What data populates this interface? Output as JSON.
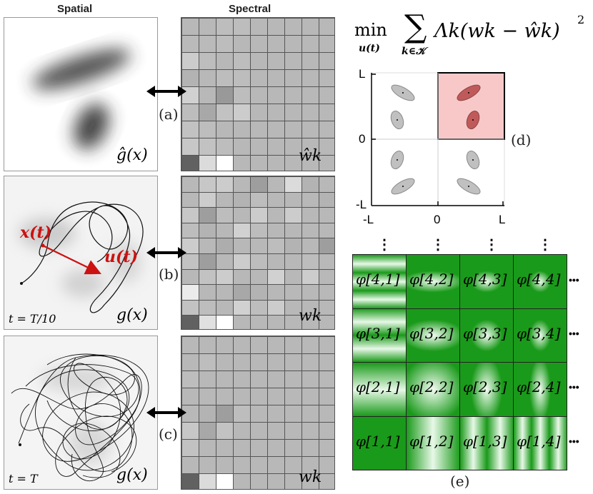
{
  "headers": {
    "spatial": "Spatial",
    "spectral": "Spectral"
  },
  "rows": [
    {
      "spatial_label": "ĝ(x)",
      "spectral_label": "ŵk",
      "tag": "(a)",
      "time": ""
    },
    {
      "spatial_label": "g(x)",
      "spectral_label": "wk",
      "tag": "(b)",
      "time": "t = T/10",
      "x_label": "x(t)",
      "u_label": "u(t)"
    },
    {
      "spatial_label": "g(x)",
      "spectral_label": "wk",
      "tag": "(c)",
      "time": "t = T"
    }
  ],
  "spectral_grids": [
    [
      [
        0.72,
        0.72,
        0.74,
        0.74,
        0.72,
        0.72,
        0.72,
        0.72,
        0.72
      ],
      [
        0.73,
        0.73,
        0.74,
        0.72,
        0.72,
        0.72,
        0.72,
        0.72,
        0.72
      ],
      [
        0.8,
        0.74,
        0.72,
        0.74,
        0.72,
        0.72,
        0.72,
        0.72,
        0.72
      ],
      [
        0.7,
        0.72,
        0.74,
        0.74,
        0.72,
        0.72,
        0.72,
        0.72,
        0.72
      ],
      [
        0.82,
        0.72,
        0.6,
        0.74,
        0.72,
        0.72,
        0.72,
        0.72,
        0.72
      ],
      [
        0.74,
        0.66,
        0.76,
        0.8,
        0.72,
        0.72,
        0.72,
        0.72,
        0.72
      ],
      [
        0.76,
        0.74,
        0.72,
        0.72,
        0.72,
        0.72,
        0.72,
        0.72,
        0.72
      ],
      [
        0.78,
        0.76,
        0.74,
        0.72,
        0.72,
        0.72,
        0.72,
        0.72,
        0.72
      ],
      [
        0.38,
        0.86,
        1.0,
        0.72,
        0.72,
        0.72,
        0.72,
        0.72,
        0.72
      ]
    ],
    [
      [
        0.72,
        0.78,
        0.8,
        0.72,
        0.62,
        0.72,
        0.86,
        0.7,
        0.72
      ],
      [
        0.72,
        0.8,
        0.72,
        0.7,
        0.74,
        0.72,
        0.72,
        0.72,
        0.7
      ],
      [
        0.78,
        0.62,
        0.74,
        0.72,
        0.8,
        0.72,
        0.8,
        0.72,
        0.72
      ],
      [
        0.74,
        0.7,
        0.72,
        0.82,
        0.74,
        0.72,
        0.72,
        0.72,
        0.72
      ],
      [
        0.8,
        0.72,
        0.68,
        0.72,
        0.72,
        0.74,
        0.7,
        0.72,
        0.62
      ],
      [
        0.76,
        0.62,
        0.72,
        0.8,
        0.74,
        0.72,
        0.72,
        0.74,
        0.72
      ],
      [
        0.72,
        0.76,
        0.8,
        0.72,
        0.72,
        0.82,
        0.72,
        0.8,
        0.72
      ],
      [
        0.92,
        0.72,
        0.72,
        0.66,
        0.7,
        0.72,
        0.72,
        0.72,
        0.72
      ],
      [
        0.76,
        0.74,
        0.72,
        0.82,
        0.74,
        0.8,
        0.72,
        0.72,
        0.72
      ],
      [
        0.38,
        0.88,
        1.0,
        0.72,
        0.72,
        0.72,
        0.72,
        0.72,
        0.72
      ]
    ],
    [
      [
        0.72,
        0.72,
        0.72,
        0.72,
        0.72,
        0.72,
        0.72,
        0.72,
        0.72
      ],
      [
        0.72,
        0.74,
        0.72,
        0.72,
        0.72,
        0.72,
        0.72,
        0.72,
        0.72
      ],
      [
        0.74,
        0.72,
        0.72,
        0.72,
        0.72,
        0.72,
        0.72,
        0.72,
        0.72
      ],
      [
        0.72,
        0.72,
        0.72,
        0.72,
        0.72,
        0.72,
        0.72,
        0.72,
        0.72
      ],
      [
        0.72,
        0.7,
        0.62,
        0.74,
        0.72,
        0.72,
        0.72,
        0.72,
        0.72
      ],
      [
        0.78,
        0.66,
        0.76,
        0.72,
        0.72,
        0.72,
        0.72,
        0.72,
        0.72
      ],
      [
        0.76,
        0.72,
        0.72,
        0.72,
        0.72,
        0.72,
        0.72,
        0.72,
        0.72
      ],
      [
        0.72,
        0.72,
        0.72,
        0.72,
        0.72,
        0.72,
        0.72,
        0.72,
        0.72
      ],
      [
        0.38,
        0.86,
        1.0,
        0.72,
        0.72,
        0.72,
        0.72,
        0.72,
        0.72
      ]
    ]
  ],
  "formula": {
    "min": "min",
    "min_sub": "u(t)",
    "sum_sub": "k∈𝒦",
    "body": "Λk(wk − ŵk)",
    "power": "2"
  },
  "domain_plot": {
    "tag": "(d)",
    "y_ticks": [
      "L",
      "0",
      "-L"
    ],
    "x_ticks": [
      "-L",
      "0",
      "L"
    ],
    "highlight_color": "#f8c8c8"
  },
  "basis": {
    "tag": "(e)",
    "labels": [
      [
        "φ[4,1]",
        "φ[4,2]",
        "φ[4,3]",
        "φ[4,4]"
      ],
      [
        "φ[3,1]",
        "φ[3,2]",
        "φ[3,3]",
        "φ[3,4]"
      ],
      [
        "φ[2,1]",
        "φ[2,2]",
        "φ[2,3]",
        "φ[2,4]"
      ],
      [
        "φ[1,1]",
        "φ[1,2]",
        "φ[1,3]",
        "φ[1,4]"
      ]
    ],
    "ellipsis_h": "•••",
    "ellipsis_v": "⋮",
    "color": "#1a9a1a"
  },
  "colors": {
    "trajectory": "#111111",
    "vector": "#cc1111"
  }
}
